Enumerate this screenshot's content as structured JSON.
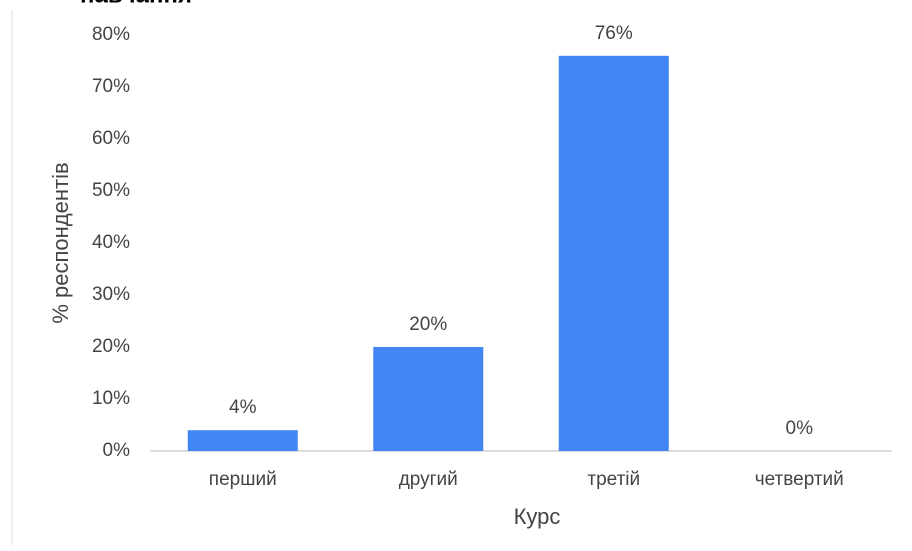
{
  "chart_data": {
    "type": "bar",
    "title": "навчання",
    "categories": [
      "перший",
      "другий",
      "третій",
      "четвертий"
    ],
    "values": [
      4,
      20,
      76,
      0
    ],
    "value_labels": [
      "4%",
      "20%",
      "76%",
      "0%"
    ],
    "color": "#4285f4",
    "x_label": "Курс",
    "y_label": "% респондентів",
    "ylim": [
      0,
      80
    ],
    "yticks": [
      {
        "value": 0,
        "label": "0%"
      },
      {
        "value": 10,
        "label": "10%"
      },
      {
        "value": 20,
        "label": "20%"
      },
      {
        "value": 30,
        "label": "30%"
      },
      {
        "value": 40,
        "label": "40%"
      },
      {
        "value": 50,
        "label": "50%"
      },
      {
        "value": 60,
        "label": "60%"
      },
      {
        "value": 70,
        "label": "70%"
      },
      {
        "value": 80,
        "label": "80%"
      }
    ],
    "grid": false
  }
}
